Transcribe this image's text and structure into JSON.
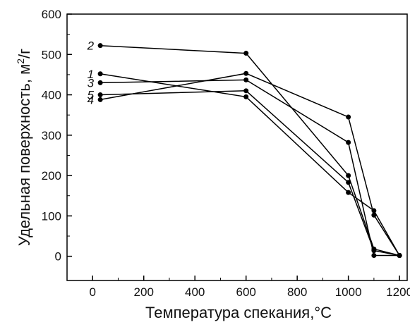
{
  "chart_data": {
    "type": "line",
    "xlabel": "Температура спекания,°C",
    "ylabel_main": "Удельная поверхность, м",
    "ylabel_sup": "2",
    "ylabel_tail": "/г",
    "xlim": [
      -100,
      1230
    ],
    "ylim": [
      -60,
      600
    ],
    "xticks": [
      0,
      200,
      400,
      600,
      800,
      1000,
      1200
    ],
    "yticks": [
      0,
      100,
      200,
      300,
      400,
      500,
      600
    ],
    "grid": false,
    "legend": "inline-left",
    "line_color": "#000000",
    "series": [
      {
        "name": "1",
        "x": [
          30,
          600,
          1000,
          1100,
          1200
        ],
        "y": [
          452,
          395,
          158,
          113,
          2
        ]
      },
      {
        "name": "2",
        "x": [
          30,
          600,
          1000,
          1100,
          1200
        ],
        "y": [
          522,
          503,
          200,
          18,
          2
        ]
      },
      {
        "name": "3",
        "x": [
          30,
          600,
          1000,
          1100,
          1200
        ],
        "y": [
          430,
          437,
          282,
          2,
          2
        ]
      },
      {
        "name": "4",
        "x": [
          30,
          600,
          1000,
          1100,
          1200
        ],
        "y": [
          388,
          453,
          345,
          102,
          2
        ]
      },
      {
        "name": "5",
        "x": [
          30,
          600,
          1000,
          1100,
          1200
        ],
        "y": [
          400,
          410,
          183,
          14,
          2
        ]
      }
    ]
  }
}
